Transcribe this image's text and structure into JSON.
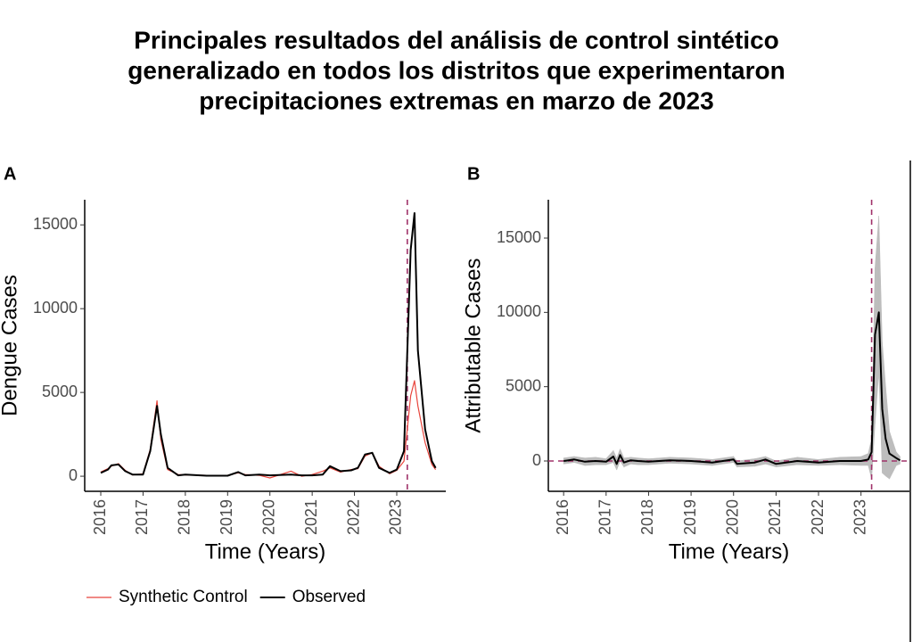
{
  "title": [
    "Principales resultados del análisis de control sintético",
    "generalizado en todos los distritos que experimentaron",
    "precipitaciones extremas en marzo de 2023"
  ],
  "chart_data": [
    {
      "type": "line",
      "panel": "A",
      "x_label": "Time (Years)",
      "y_label": "Dengue Cases",
      "x": [
        2016.0,
        2016.17,
        2016.25,
        2016.42,
        2016.58,
        2016.75,
        2017.0,
        2017.17,
        2017.33,
        2017.42,
        2017.58,
        2017.83,
        2018.0,
        2018.5,
        2019.0,
        2019.25,
        2019.42,
        2019.75,
        2020.0,
        2020.5,
        2020.75,
        2021.0,
        2021.25,
        2021.42,
        2021.67,
        2021.92,
        2022.08,
        2022.25,
        2022.42,
        2022.58,
        2022.83,
        2023.0,
        2023.17,
        2023.33,
        2023.42,
        2023.5,
        2023.67,
        2023.83,
        2023.92
      ],
      "series": [
        {
          "name": "Synthetic Control",
          "color": "#e8453c",
          "values": [
            250,
            450,
            600,
            750,
            350,
            80,
            150,
            1600,
            4500,
            2200,
            400,
            100,
            80,
            50,
            50,
            200,
            100,
            50,
            -100,
            300,
            0,
            100,
            300,
            500,
            250,
            400,
            450,
            1200,
            1400,
            600,
            150,
            350,
            900,
            4800,
            5700,
            4200,
            2000,
            700,
            400
          ]
        },
        {
          "name": "Observed",
          "color": "#000000",
          "values": [
            200,
            400,
            650,
            700,
            300,
            100,
            100,
            1500,
            4200,
            2500,
            500,
            50,
            100,
            30,
            30,
            250,
            50,
            100,
            50,
            100,
            50,
            50,
            100,
            600,
            300,
            350,
            500,
            1300,
            1400,
            500,
            200,
            400,
            1500,
            13500,
            15700,
            7500,
            2800,
            900,
            500
          ]
        }
      ],
      "xlim": [
        2015.62,
        2024.16
      ],
      "ylim": [
        -900,
        16500
      ],
      "xticks": [
        2016,
        2017,
        2018,
        2019,
        2020,
        2021,
        2022,
        2023
      ],
      "yticks": [
        0,
        5000,
        10000,
        15000
      ],
      "vline": 2023.25,
      "ref_color": "#a0336a"
    },
    {
      "type": "line",
      "panel": "B",
      "x_label": "Time (Years)",
      "y_label": "Attributable Cases",
      "x": [
        2016.0,
        2016.25,
        2016.5,
        2016.75,
        2017.0,
        2017.17,
        2017.25,
        2017.33,
        2017.42,
        2017.58,
        2017.75,
        2018.0,
        2018.5,
        2019.0,
        2019.5,
        2020.0,
        2020.08,
        2020.5,
        2020.75,
        2021.0,
        2021.5,
        2022.0,
        2022.5,
        2023.0,
        2023.17,
        2023.25,
        2023.33,
        2023.42,
        2023.5,
        2023.58,
        2023.67,
        2023.83,
        2023.92
      ],
      "values": [
        0,
        100,
        -50,
        0,
        -50,
        300,
        -200,
        400,
        -100,
        50,
        0,
        -50,
        50,
        0,
        -100,
        100,
        -200,
        -100,
        100,
        -200,
        0,
        -100,
        0,
        0,
        100,
        600,
        8500,
        10000,
        3500,
        1500,
        500,
        200,
        50
      ],
      "color": "#000000",
      "band": {
        "color": "#bdbdbd",
        "lower": [
          -200,
          -100,
          -300,
          -250,
          -250,
          -100,
          -600,
          0,
          -400,
          -200,
          -250,
          -250,
          -150,
          -200,
          -300,
          -100,
          -400,
          -350,
          -200,
          -400,
          -250,
          -300,
          -250,
          -300,
          -300,
          -1200,
          2500,
          6000,
          -800,
          -1000,
          -1200,
          -300,
          -200
        ],
        "upper": [
          200,
          300,
          200,
          250,
          150,
          700,
          200,
          800,
          200,
          250,
          200,
          150,
          250,
          200,
          100,
          300,
          0,
          150,
          300,
          0,
          250,
          100,
          250,
          300,
          500,
          1500,
          13000,
          16500,
          8000,
          5000,
          2000,
          600,
          300
        ]
      },
      "xlim": [
        2015.64,
        2024.14
      ],
      "ylim": [
        -2040,
        17580
      ],
      "xticks": [
        2016,
        2017,
        2018,
        2019,
        2020,
        2021,
        2022,
        2023
      ],
      "yticks": [
        0,
        5000,
        10000,
        15000
      ],
      "vline": 2023.25,
      "hline": 0,
      "ref_color": "#a0336a"
    }
  ]
}
